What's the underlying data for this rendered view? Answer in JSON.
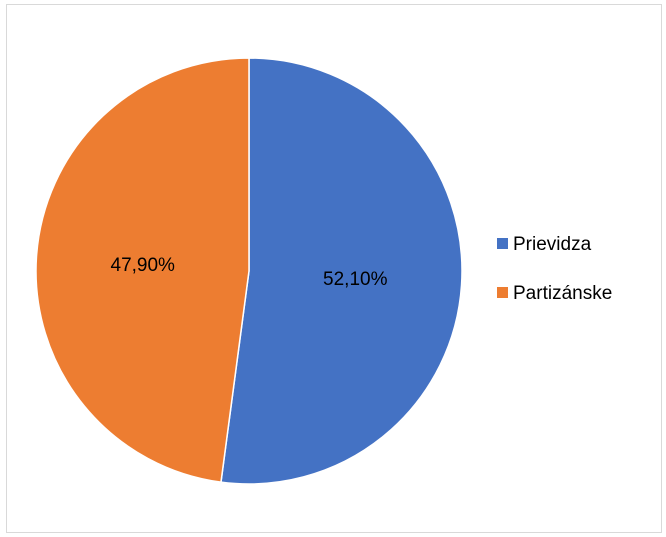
{
  "chart_data": {
    "type": "pie",
    "title": "",
    "slices": [
      {
        "name": "Prievidza",
        "value": 52.1,
        "label": "52,10%",
        "color": "#4472C4"
      },
      {
        "name": "Partizánske",
        "value": 47.9,
        "label": "47,90%",
        "color": "#ED7D31"
      }
    ],
    "legend": {
      "position": "right",
      "items": [
        "Prievidza",
        "Partizánske"
      ]
    }
  }
}
